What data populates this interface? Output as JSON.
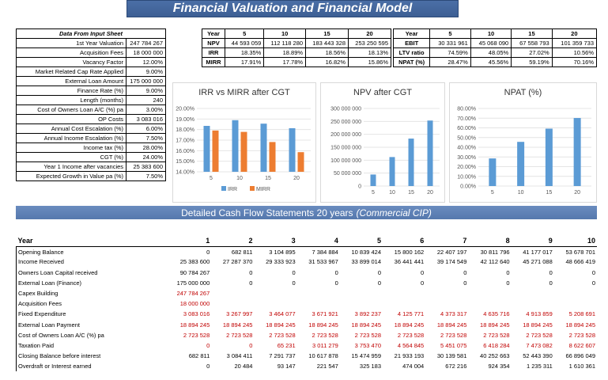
{
  "title": "Financial Valuation and Financial Model",
  "input": {
    "header": "Data From Input Sheet",
    "rows": [
      {
        "label": "1st Year Valuation",
        "value": "247 784 267"
      },
      {
        "label": "Acquisition Fees",
        "value": "18 000 000"
      },
      {
        "label": "Vacancy Factor",
        "value": "12.00%"
      },
      {
        "label": "Market Related Cap Rate Applied",
        "value": "9.00%"
      },
      {
        "label": "External Loan Amount",
        "value": "175 000 000"
      },
      {
        "label": "Finance Rate (%)",
        "value": "9.00%"
      },
      {
        "label": "Length (months)",
        "value": "240"
      },
      {
        "label": "Cost of Owners Loan A/C (%) pa",
        "value": "3.00%"
      },
      {
        "label": "OP Costs",
        "value": "3 083 016"
      },
      {
        "label": "Annual Cost Escalation (%)",
        "value": "6.00%"
      },
      {
        "label": "Annual Income Escalation (%)",
        "value": "7.50%"
      },
      {
        "label": "Income tax (%)",
        "value": "28.00%"
      },
      {
        "label": "CGT (%)",
        "value": "24.00%"
      },
      {
        "label": "Year 1 Income after vacancies",
        "value": "25 383 600"
      },
      {
        "label": "Expected Growth in Value pa (%)",
        "value": "7.50%"
      }
    ]
  },
  "results_left": {
    "headers": [
      "Year",
      "5",
      "10",
      "15",
      "20"
    ],
    "rows": [
      {
        "label": "NPV",
        "values": [
          "44 593 059",
          "112 118 280",
          "183 443 328",
          "253 250 595"
        ]
      },
      {
        "label": "IRR",
        "values": [
          "18.35%",
          "18.89%",
          "18.56%",
          "18.13%"
        ]
      },
      {
        "label": "MIRR",
        "values": [
          "17.91%",
          "17.78%",
          "16.82%",
          "15.86%"
        ]
      }
    ]
  },
  "results_right": {
    "headers": [
      "Year",
      "5",
      "10",
      "15",
      "20"
    ],
    "rows": [
      {
        "label": "EBIT",
        "values": [
          "30 331 961",
          "45 068 090",
          "67 558 793",
          "101 359 733"
        ]
      },
      {
        "label": "LTV ratio",
        "values": [
          "74.59%",
          "48.05%",
          "27.02%",
          "10.56%"
        ]
      },
      {
        "label": "NPAT (%)",
        "values": [
          "28.47%",
          "45.56%",
          "59.19%",
          "70.16%"
        ]
      }
    ]
  },
  "chart_data": [
    {
      "type": "bar",
      "title": "IRR vs MIRR after CGT",
      "categories": [
        "5",
        "10",
        "15",
        "20"
      ],
      "series": [
        {
          "name": "IRR",
          "values": [
            18.35,
            18.89,
            18.56,
            18.13
          ],
          "color": "#5b9bd5"
        },
        {
          "name": "MIRR",
          "values": [
            17.91,
            17.78,
            16.82,
            15.86
          ],
          "color": "#ed7d31"
        }
      ],
      "ylim": [
        14,
        20
      ],
      "yticks": [
        "20.00%",
        "19.00%",
        "18.00%",
        "17.00%",
        "16.00%",
        "15.00%",
        "14.00%"
      ],
      "legend": "bottom"
    },
    {
      "type": "bar",
      "title": "NPV after CGT",
      "categories": [
        "5",
        "10",
        "15",
        "20"
      ],
      "series": [
        {
          "values": [
            44593059,
            112118280,
            183443328,
            253250595
          ],
          "color": "#5b9bd5"
        }
      ],
      "ylim": [
        0,
        300000000
      ],
      "yticks": [
        "300 000 000",
        "250 000 000",
        "200 000 000",
        "150 000 000",
        "100 000 000",
        "50 000 000",
        "0"
      ]
    },
    {
      "type": "bar",
      "title": "NPAT (%)",
      "categories": [
        "5",
        "10",
        "15",
        "20"
      ],
      "series": [
        {
          "values": [
            28.47,
            45.56,
            59.19,
            70.16
          ],
          "color": "#5b9bd5"
        }
      ],
      "ylim": [
        0,
        80
      ],
      "yticks": [
        "80.00%",
        "70.00%",
        "60.00%",
        "50.00%",
        "40.00%",
        "30.00%",
        "20.00%",
        "10.00%",
        "0.00%"
      ]
    }
  ],
  "cashflow": {
    "title": "Detailed Cash Flow Statements 20 years",
    "subtitle": "(Commercial CIP)",
    "year_label": "Year",
    "years": [
      "1",
      "2",
      "3",
      "4",
      "5",
      "6",
      "7",
      "8",
      "9",
      "10"
    ],
    "rows": [
      {
        "label": "Opening Balance",
        "red": false,
        "values": [
          "0",
          "682 811",
          "3 104 895",
          "7 384 884",
          "10 839 424",
          "15 800 162",
          "22 407 197",
          "30 811 796",
          "41 177 017",
          "53 678 701"
        ]
      },
      {
        "label": "Income Received",
        "red": false,
        "values": [
          "25 383 600",
          "27 287 370",
          "29 333 923",
          "31 533 967",
          "33 899 014",
          "36 441 441",
          "39 174 549",
          "42 112 640",
          "45 271 088",
          "48 666 419"
        ]
      },
      {
        "label": "Owners Loan Capital received",
        "red": false,
        "values": [
          "90 784 267",
          "0",
          "0",
          "0",
          "0",
          "0",
          "0",
          "0",
          "0",
          "0"
        ]
      },
      {
        "label": "External Loan (Finance)",
        "red": false,
        "values": [
          "175 000 000",
          "0",
          "0",
          "0",
          "0",
          "0",
          "0",
          "0",
          "0",
          "0"
        ]
      },
      {
        "label": "Capex Building",
        "red": true,
        "values": [
          "247 784 267",
          "",
          "",
          "",
          "",
          "",
          "",
          "",
          "",
          ""
        ]
      },
      {
        "label": "Acquisition Fees",
        "red": true,
        "values": [
          "18 000 000",
          "",
          "",
          "",
          "",
          "",
          "",
          "",
          "",
          ""
        ]
      },
      {
        "label": "Fixed Expenditure",
        "red": true,
        "values": [
          "3 083 016",
          "3 267 997",
          "3 464 077",
          "3 671 921",
          "3 892 237",
          "4 125 771",
          "4 373 317",
          "4 635 716",
          "4 913 859",
          "5 208 691"
        ]
      },
      {
        "label": "External Loan Payment",
        "red": true,
        "values": [
          "18 894 245",
          "18 894 245",
          "18 894 245",
          "18 894 245",
          "18 894 245",
          "18 894 245",
          "18 894 245",
          "18 894 245",
          "18 894 245",
          "18 894 245"
        ]
      },
      {
        "label": "Cost of Owners Loan A/C (%) pa",
        "red": true,
        "values": [
          "2 723 528",
          "2 723 528",
          "2 723 528",
          "2 723 528",
          "2 723 528",
          "2 723 528",
          "2 723 528",
          "2 723 528",
          "2 723 528",
          "2 723 528"
        ]
      },
      {
        "label": "Taxation Paid",
        "red": true,
        "values": [
          "0",
          "0",
          "65 231",
          "3 011 279",
          "3 753 470",
          "4 564 845",
          "5 451 075",
          "6 418 284",
          "7 473 082",
          "8 622 607"
        ]
      },
      {
        "label": "Closing Balance before interest",
        "red": false,
        "values": [
          "682 811",
          "3 084 411",
          "7 291 737",
          "10 617 878",
          "15 474 959",
          "21 933 193",
          "30 139 581",
          "40 252 663",
          "52 443 390",
          "66 896 049"
        ]
      },
      {
        "label": "Overdraft or Interest earned",
        "red": false,
        "values": [
          "0",
          "20 484",
          "93 147",
          "221 547",
          "325 183",
          "474 004",
          "672 216",
          "924 354",
          "1 235 311",
          "1 610 361"
        ]
      }
    ]
  }
}
